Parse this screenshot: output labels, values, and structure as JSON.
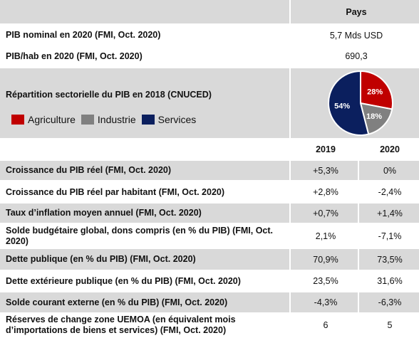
{
  "header": {
    "country_col": "Pays"
  },
  "pib_nominal": {
    "label": "PIB nominal en 2020 (FMI, Oct. 2020)",
    "value": "5,7 Mds USD"
  },
  "pib_hab": {
    "label": "PIB/hab en 2020 (FMI, Oct. 2020)",
    "value": "690,3"
  },
  "sectoral": {
    "title": "Répartition sectorielle du PIB en 2018 (CNUCED)",
    "legend": [
      {
        "name": "Agriculture",
        "color": "#c00000"
      },
      {
        "name": "Industrie",
        "color": "#808080"
      },
      {
        "name": "Services",
        "color": "#0b1f5e"
      }
    ]
  },
  "chart_data": {
    "type": "pie",
    "categories": [
      "Agriculture",
      "Industrie",
      "Services"
    ],
    "values": [
      28,
      18,
      54
    ],
    "labels": [
      "28%",
      "18%",
      "54%"
    ],
    "colors": [
      "#c00000",
      "#808080",
      "#0b1f5e"
    ]
  },
  "years": {
    "y1": "2019",
    "y2": "2020"
  },
  "rows": [
    {
      "label": "Croissance du PIB réel (FMI, Oct. 2020)",
      "v2019": "+5,3%",
      "v2020": "0%"
    },
    {
      "label": "Croissance du PIB réel par habitant (FMI, Oct. 2020)",
      "v2019": "+2,8%",
      "v2020": "-2,4%"
    },
    {
      "label": "Taux d’inflation moyen annuel (FMI, Oct. 2020)",
      "v2019": "+0,7%",
      "v2020": "+1,4%"
    },
    {
      "label": "Solde budgétaire global, dons compris (en % du PIB) (FMI, Oct. 2020)",
      "v2019": "2,1%",
      "v2020": "-7,1%"
    },
    {
      "label": "Dette publique (en % du PIB) (FMI, Oct. 2020)",
      "v2019": "70,9%",
      "v2020": "73,5%"
    },
    {
      "label": "Dette extérieure publique (en % du PIB) (FMI, Oct. 2020)",
      "v2019": "23,5%",
      "v2020": "31,6%"
    },
    {
      "label": "Solde courant externe (en % du PIB) (FMI, Oct. 2020)",
      "v2019": "-4,3%",
      "v2020": "-6,3%"
    },
    {
      "label": "Réserves de change zone UEMOA (en équivalent mois d’importations de biens et services) (FMI, Oct. 2020)",
      "v2019": "6",
      "v2020": "5"
    }
  ]
}
